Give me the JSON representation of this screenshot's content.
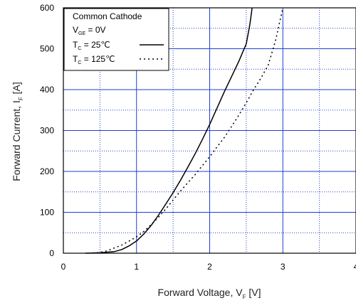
{
  "chart_data": {
    "type": "line",
    "title": "",
    "xlabel": {
      "main": "Forward Voltage,  V",
      "sub": "F",
      "unit": "  [V]"
    },
    "ylabel": {
      "main": "Forward Current,  I",
      "sub": "F",
      "unit": "  [A]"
    },
    "xlim": [
      0,
      4
    ],
    "ylim": [
      0,
      600
    ],
    "x_ticks": [
      0,
      1,
      2,
      3,
      4
    ],
    "y_ticks": [
      0,
      100,
      200,
      300,
      400,
      500,
      600
    ],
    "x_tick_labels": [
      "0",
      "1",
      "2",
      "3",
      "4"
    ],
    "y_tick_labels": [
      "0",
      "100",
      "200",
      "300",
      "400",
      "500",
      "600"
    ],
    "grid": true,
    "grid_color": "#1f3fd0",
    "legend_position": "top-left",
    "legend": {
      "title": "Common Cathode",
      "condition": {
        "main": "V",
        "sub": "GE",
        "rest": " = 0V"
      }
    },
    "series": [
      {
        "name": {
          "main": "T",
          "sub": "C",
          "rest": " =   25℃"
        },
        "style": "solid",
        "x": [
          0.3,
          0.5,
          0.7,
          0.8,
          0.9,
          1.0,
          1.1,
          1.2,
          1.3,
          1.4,
          1.5,
          1.6,
          1.7,
          1.8,
          1.9,
          2.0,
          2.1,
          2.2,
          2.3,
          2.4,
          2.5,
          2.55,
          2.58
        ],
        "y": [
          0,
          1,
          4,
          9,
          18,
          30,
          47,
          68,
          93,
          120,
          148,
          178,
          210,
          243,
          278,
          315,
          355,
          395,
          432,
          470,
          512,
          560,
          600
        ]
      },
      {
        "name": {
          "main": "T",
          "sub": "C",
          "rest": " = 125℃"
        },
        "style": "dotted",
        "x": [
          0.4,
          0.5,
          0.6,
          0.7,
          0.8,
          0.9,
          1.0,
          1.1,
          1.2,
          1.3,
          1.4,
          1.5,
          1.6,
          1.7,
          1.8,
          1.9,
          2.0,
          2.1,
          2.2,
          2.3,
          2.4,
          2.5,
          2.6,
          2.7,
          2.8,
          2.9,
          3.0
        ],
        "y": [
          0,
          2,
          6,
          13,
          20,
          30,
          40,
          53,
          70,
          88,
          108,
          130,
          152,
          172,
          192,
          214,
          236,
          260,
          283,
          310,
          338,
          368,
          400,
          428,
          460,
          520,
          600
        ]
      }
    ]
  }
}
